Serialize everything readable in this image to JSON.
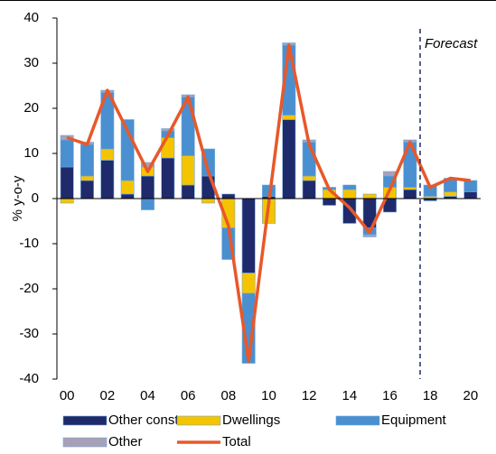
{
  "chart_data": {
    "type": "stacked_bar_line",
    "y_label": "% y-o-y",
    "annotation": {
      "text": "Forecast",
      "category": "18"
    },
    "categories": [
      "00",
      null,
      "02",
      null,
      "04",
      null,
      "06",
      null,
      "08",
      null,
      "10",
      null,
      "12",
      null,
      "14",
      null,
      "16",
      null,
      "18",
      null,
      "20"
    ],
    "series": [
      {
        "name": "Other constr.",
        "color": "#1f2a6b",
        "values": [
          7,
          4,
          8.5,
          1,
          5,
          9,
          3,
          5,
          1,
          -16.5,
          0.5,
          17.5,
          4,
          -1.5,
          -5.5,
          -6.5,
          -3,
          2,
          -0.5,
          0.5,
          1.5
        ]
      },
      {
        "name": "Dwellings",
        "color": "#f5c400",
        "values": [
          -1,
          1,
          2.5,
          3,
          2,
          4.5,
          6.5,
          -1,
          -6.5,
          -4.5,
          -5.5,
          1,
          1,
          2,
          2,
          1,
          2.5,
          0.5,
          0.5,
          1,
          0
        ]
      },
      {
        "name": "Equipment",
        "color": "#4a8fd0",
        "values": [
          6,
          7,
          12.5,
          13.5,
          -2.5,
          1.5,
          13,
          6,
          -7,
          -15.5,
          2.5,
          15.5,
          7.5,
          0.5,
          1,
          -1.5,
          2.5,
          10,
          2.5,
          3,
          2.5
        ]
      },
      {
        "name": "Other",
        "color": "#a9a0b8",
        "values": [
          1,
          0.5,
          0.5,
          0,
          1,
          0.5,
          0.5,
          0,
          0,
          0,
          0,
          0.5,
          0.5,
          0,
          0,
          -0.5,
          1,
          0.5,
          0,
          0,
          0
        ]
      }
    ],
    "line": {
      "name": "Total",
      "color": "#e8582a",
      "values": [
        13.5,
        12,
        24,
        15,
        6,
        14,
        22.5,
        6,
        -6,
        -36,
        -1,
        34,
        12,
        2,
        -2,
        -7.5,
        2,
        12.5,
        2.5,
        4.5,
        4
      ]
    },
    "ylim": [
      -40,
      40
    ],
    "yticks": [
      -40,
      -30,
      -20,
      -10,
      0,
      10,
      20,
      30,
      40
    ]
  }
}
